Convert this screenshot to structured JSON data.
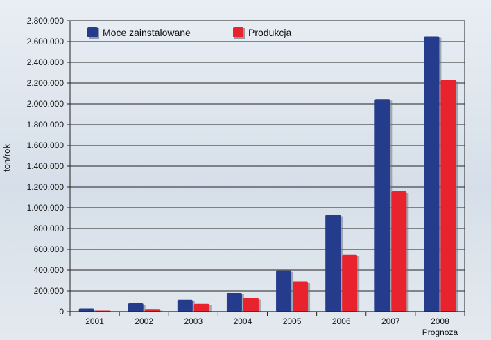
{
  "chart_data": {
    "type": "bar",
    "categories": [
      "2001",
      "2002",
      "2003",
      "2004",
      "2005",
      "2006",
      "2007",
      "2008"
    ],
    "category_note": {
      "index": 7,
      "text": "Prognoza"
    },
    "series": [
      {
        "name": "Moce zainstalowane",
        "color": "#253c8c",
        "values": [
          30000,
          80000,
          115000,
          180000,
          395000,
          930000,
          2045000,
          2650000
        ]
      },
      {
        "name": "Produkcja",
        "color": "#e8232d",
        "values": [
          10000,
          25000,
          75000,
          130000,
          290000,
          548000,
          1160000,
          2230000
        ]
      }
    ],
    "ylabel": "ton/rok",
    "xlabel": "",
    "title": "",
    "ylim": [
      0,
      2800000
    ],
    "ytick_step": 200000,
    "ytick_labels": [
      "0",
      "200.000",
      "400.000",
      "600.000",
      "800.000",
      "1.000.000",
      "1.200.000",
      "1.400.000",
      "1.600.000",
      "1.800.000",
      "2.000.000",
      "2.200.000",
      "2.400.000",
      "2.600.000",
      "2.800.000"
    ],
    "grid": true,
    "legend_position": "top-left"
  }
}
